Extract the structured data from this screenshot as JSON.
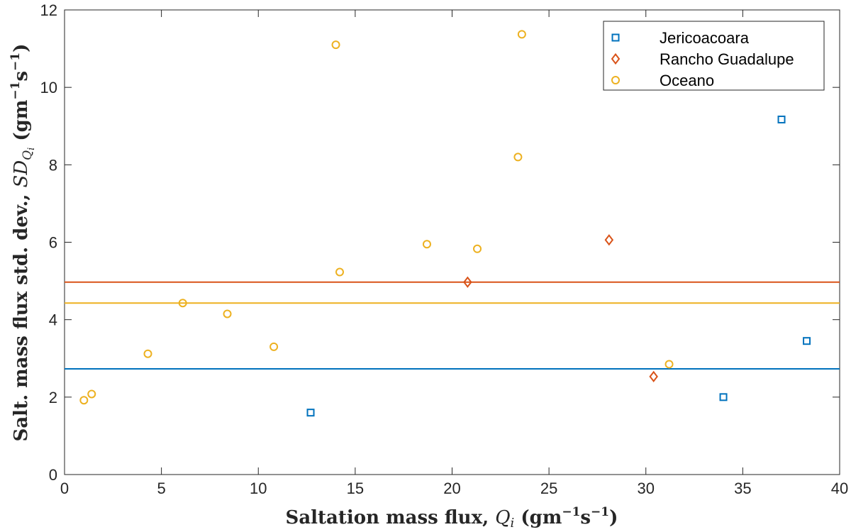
{
  "chart_data": {
    "type": "scatter",
    "xlabel": "Saltation mass flux, Q_i (gm^-1s^-1)",
    "ylabel": "Salt. mass flux std. dev., SD_Qi (gm^-1s^-1)",
    "xlabel_parts": {
      "main": "Saltation mass flux, ",
      "var": "Q",
      "sub": "i",
      "unit_open": " (gm",
      "exp1": "−1",
      "mid": "s",
      "exp2": "−1",
      "close": ")"
    },
    "ylabel_parts": {
      "main": "Salt. mass flux std. dev., ",
      "var": "SD",
      "sub": "Q",
      "subsub": "i",
      "unit_open": " (gm",
      "exp1": "−1",
      "mid": "s",
      "exp2": "−1",
      "close": ")"
    },
    "xlim": [
      0,
      40
    ],
    "ylim": [
      0,
      12
    ],
    "xticks": [
      0,
      5,
      10,
      15,
      20,
      25,
      30,
      35,
      40
    ],
    "yticks": [
      0,
      2,
      4,
      6,
      8,
      10,
      12
    ],
    "grid": false,
    "legend_position": "top-right",
    "series": [
      {
        "name": "Jericoacoara",
        "marker": "square",
        "color": "#0072bd",
        "mean_line": 2.73,
        "points": [
          [
            12.7,
            1.6
          ],
          [
            34.0,
            2.0
          ],
          [
            37.0,
            9.17
          ],
          [
            38.3,
            3.45
          ]
        ]
      },
      {
        "name": "Rancho Guadalupe",
        "marker": "diamond",
        "color": "#d95319",
        "mean_line": 4.97,
        "points": [
          [
            20.8,
            4.97
          ],
          [
            28.1,
            6.06
          ],
          [
            30.4,
            2.53
          ]
        ]
      },
      {
        "name": "Oceano",
        "marker": "circle",
        "color": "#edb120",
        "mean_line": 4.43,
        "points": [
          [
            1.0,
            1.92
          ],
          [
            1.4,
            2.08
          ],
          [
            4.3,
            3.12
          ],
          [
            6.1,
            4.43
          ],
          [
            8.4,
            4.15
          ],
          [
            10.8,
            3.3
          ],
          [
            14.0,
            11.1
          ],
          [
            14.2,
            5.23
          ],
          [
            18.7,
            5.95
          ],
          [
            21.3,
            5.83
          ],
          [
            23.4,
            8.2
          ],
          [
            23.6,
            11.37
          ],
          [
            31.2,
            2.85
          ]
        ]
      }
    ]
  }
}
